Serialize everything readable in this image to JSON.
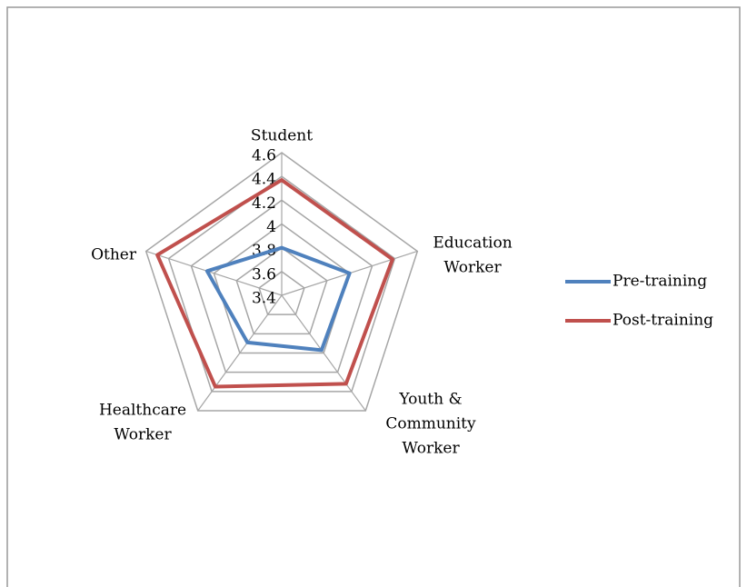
{
  "chart_data": {
    "type": "radar",
    "categories": [
      "Student",
      [
        "Education",
        "Worker"
      ],
      [
        "Youth &",
        "Community",
        "Worker"
      ],
      [
        "Healthcare",
        "Worker"
      ],
      "Other"
    ],
    "series": [
      {
        "name": "Pre-training",
        "color": "#4f81bd",
        "values": [
          3.8,
          4.0,
          3.97,
          3.89,
          4.06
        ]
      },
      {
        "name": "Post-training",
        "color": "#c0504d",
        "values": [
          4.37,
          4.38,
          4.32,
          4.35,
          4.5
        ]
      }
    ],
    "ylim": [
      3.4,
      4.6
    ],
    "yticks": [
      3.4,
      3.6,
      3.8,
      4,
      4.2,
      4.4,
      4.6
    ],
    "grid": true,
    "legend": "right"
  }
}
